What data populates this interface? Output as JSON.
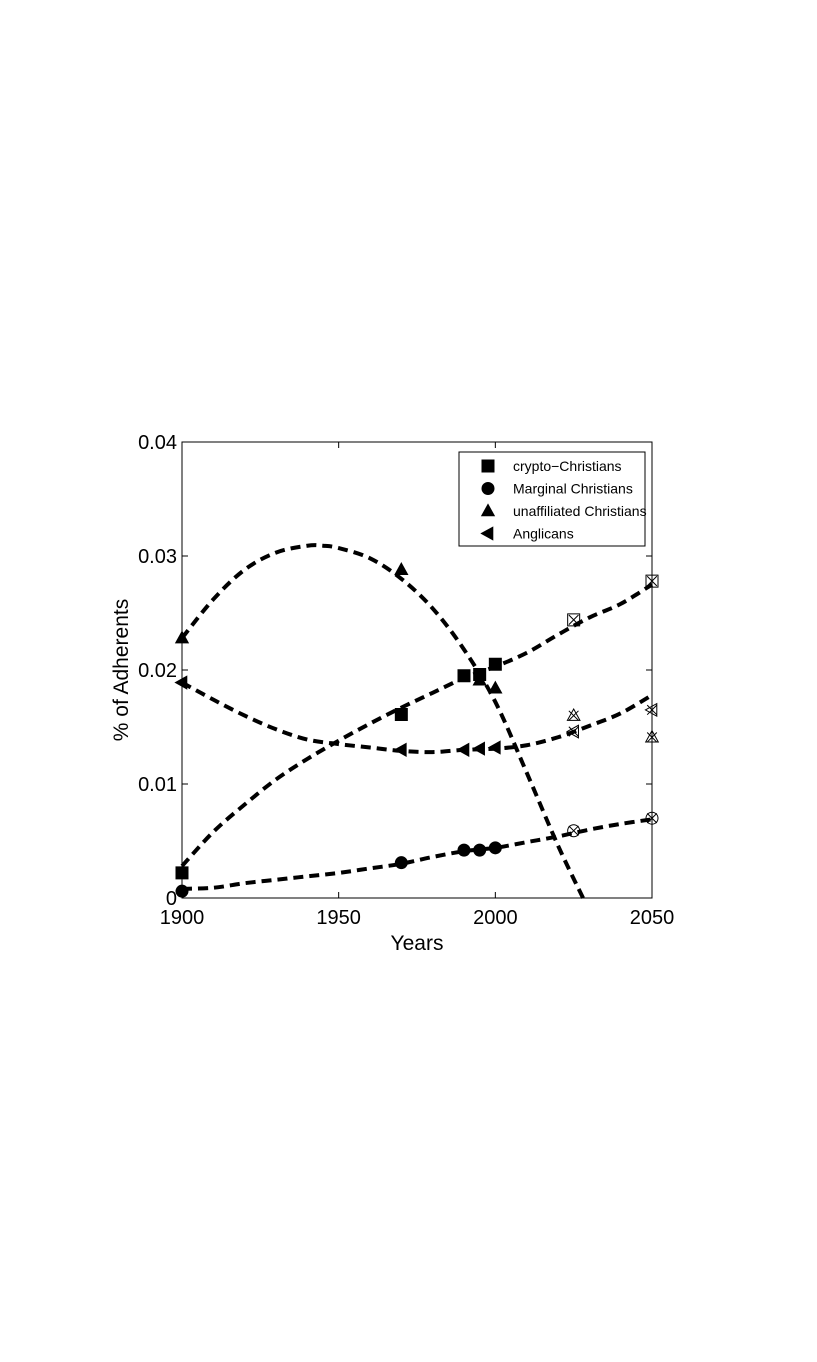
{
  "chart_data": {
    "type": "line",
    "title": "",
    "xlabel": "Years",
    "ylabel": "% of Adherents",
    "xlim": [
      1900,
      2050
    ],
    "ylim": [
      0,
      0.04
    ],
    "xticks": [
      1900,
      1950,
      2000,
      2050
    ],
    "xtick_labels": [
      "1900",
      "1950",
      "2000",
      "2050"
    ],
    "yticks": [
      0,
      0.01,
      0.02,
      0.03,
      0.04
    ],
    "ytick_labels": [
      "0",
      "0.01",
      "0.02",
      "0.03",
      "0.04"
    ],
    "grid": false,
    "legend_position": "top-right",
    "series": [
      {
        "name": "crypto−Christians",
        "marker": "square",
        "observed_x": [
          1900,
          1970,
          1990,
          1995,
          2000
        ],
        "observed_y": [
          0.0022,
          0.0161,
          0.0195,
          0.0196,
          0.0205
        ],
        "projected_x": [
          2025,
          2050
        ],
        "projected_y": [
          0.0244,
          0.0278
        ],
        "fit_x": [
          1900,
          1910,
          1920,
          1930,
          1940,
          1950,
          1960,
          1970,
          1980,
          1990,
          2000,
          2010,
          2020,
          2030,
          2040,
          2050
        ],
        "fit_y": [
          0.0028,
          0.0058,
          0.0082,
          0.0104,
          0.0122,
          0.0138,
          0.0153,
          0.0167,
          0.018,
          0.0193,
          0.0203,
          0.0215,
          0.0231,
          0.0246,
          0.0258,
          0.0275
        ]
      },
      {
        "name": "Marginal Christians",
        "marker": "circle",
        "observed_x": [
          1900,
          1970,
          1990,
          1995,
          2000
        ],
        "observed_y": [
          0.0006,
          0.0031,
          0.0042,
          0.0042,
          0.0044
        ],
        "projected_x": [
          2025,
          2050
        ],
        "projected_y": [
          0.0059,
          0.007
        ],
        "fit_x": [
          1900,
          1910,
          1920,
          1930,
          1940,
          1950,
          1960,
          1970,
          1980,
          1990,
          2000,
          2010,
          2020,
          2030,
          2040,
          2050
        ],
        "fit_y": [
          0.0008,
          0.0009,
          0.0013,
          0.0016,
          0.0019,
          0.0022,
          0.0026,
          0.003,
          0.0036,
          0.0041,
          0.0044,
          0.0049,
          0.0054,
          0.006,
          0.0065,
          0.0069
        ]
      },
      {
        "name": "unaffiliated Christians",
        "marker": "triangle-up",
        "observed_x": [
          1900,
          1970,
          1995,
          2000
        ],
        "observed_y": [
          0.0228,
          0.0288,
          0.0191,
          0.0184
        ],
        "projected_x": [
          2025,
          2050
        ],
        "projected_y": [
          0.016,
          0.0141
        ],
        "fit_x": [
          1900,
          1910,
          1920,
          1930,
          1940,
          1945,
          1950,
          1960,
          1970,
          1980,
          1990,
          2000,
          2010,
          2020,
          2028
        ],
        "fit_y": [
          0.0228,
          0.0262,
          0.0288,
          0.0303,
          0.0309,
          0.0309,
          0.0307,
          0.0298,
          0.028,
          0.0254,
          0.0218,
          0.0172,
          0.011,
          0.0046,
          0.0
        ]
      },
      {
        "name": "Anglicans",
        "marker": "triangle-left",
        "observed_x": [
          1900,
          1970,
          1990,
          1995,
          2000
        ],
        "observed_y": [
          0.0189,
          0.013,
          0.013,
          0.0131,
          0.0132
        ],
        "projected_x": [
          2025,
          2050
        ],
        "projected_y": [
          0.0146,
          0.0165
        ],
        "fit_x": [
          1900,
          1910,
          1920,
          1930,
          1940,
          1950,
          1960,
          1970,
          1980,
          1990,
          2000,
          2010,
          2020,
          2030,
          2040,
          2050
        ],
        "fit_y": [
          0.0189,
          0.0174,
          0.016,
          0.0148,
          0.0139,
          0.0135,
          0.0132,
          0.0129,
          0.0128,
          0.013,
          0.0131,
          0.0134,
          0.0141,
          0.0151,
          0.0162,
          0.0178
        ]
      }
    ]
  }
}
